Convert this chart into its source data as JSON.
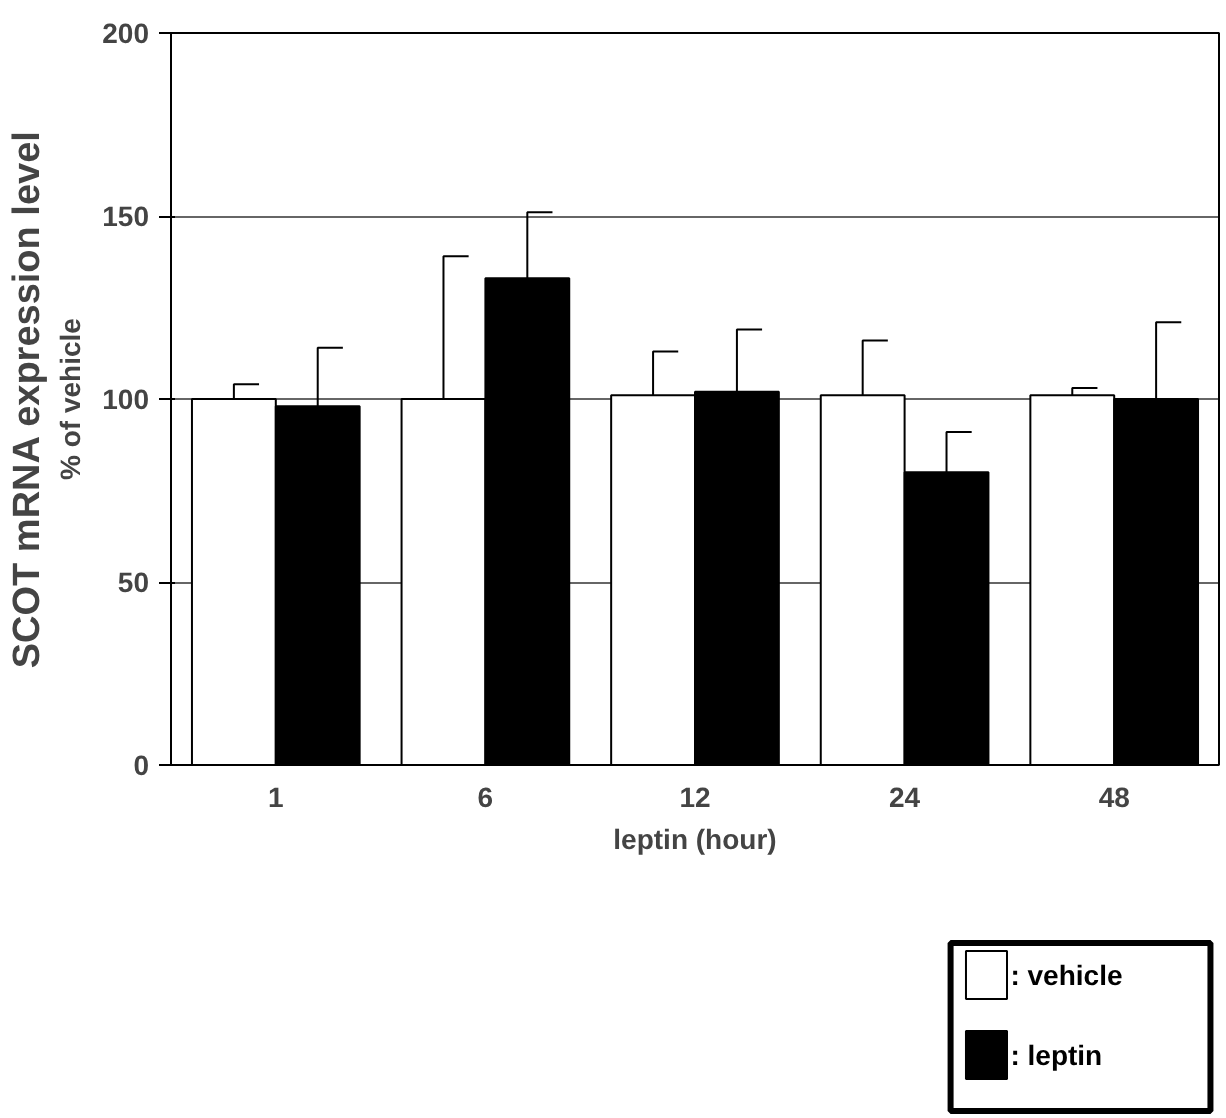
{
  "chart_data": {
    "type": "bar",
    "xlabel": "leptin (hour)",
    "ylabel": "SCOT mRNA expression level",
    "annotations": [
      "% of vehicle"
    ],
    "categories": [
      "1",
      "6",
      "12",
      "24",
      "48"
    ],
    "series": [
      {
        "name": ": vehicle",
        "color": "#ffffff",
        "values": [
          100,
          100,
          101,
          101,
          101
        ],
        "errors": [
          [
            100,
            104
          ],
          [
            100,
            139
          ],
          [
            101,
            113
          ],
          [
            101,
            116
          ],
          [
            101,
            103
          ]
        ]
      },
      {
        "name": ": leptin",
        "color": "#000000",
        "values": [
          98,
          133,
          102,
          80,
          100
        ],
        "errors": [
          [
            98,
            114
          ],
          [
            133,
            151
          ],
          [
            102,
            119
          ],
          [
            80,
            91
          ],
          [
            100,
            121
          ]
        ]
      }
    ],
    "ylim": [
      0,
      200
    ],
    "yticks": [
      0,
      50,
      100,
      150,
      200
    ],
    "grid": "y",
    "legend": "bottom right"
  }
}
